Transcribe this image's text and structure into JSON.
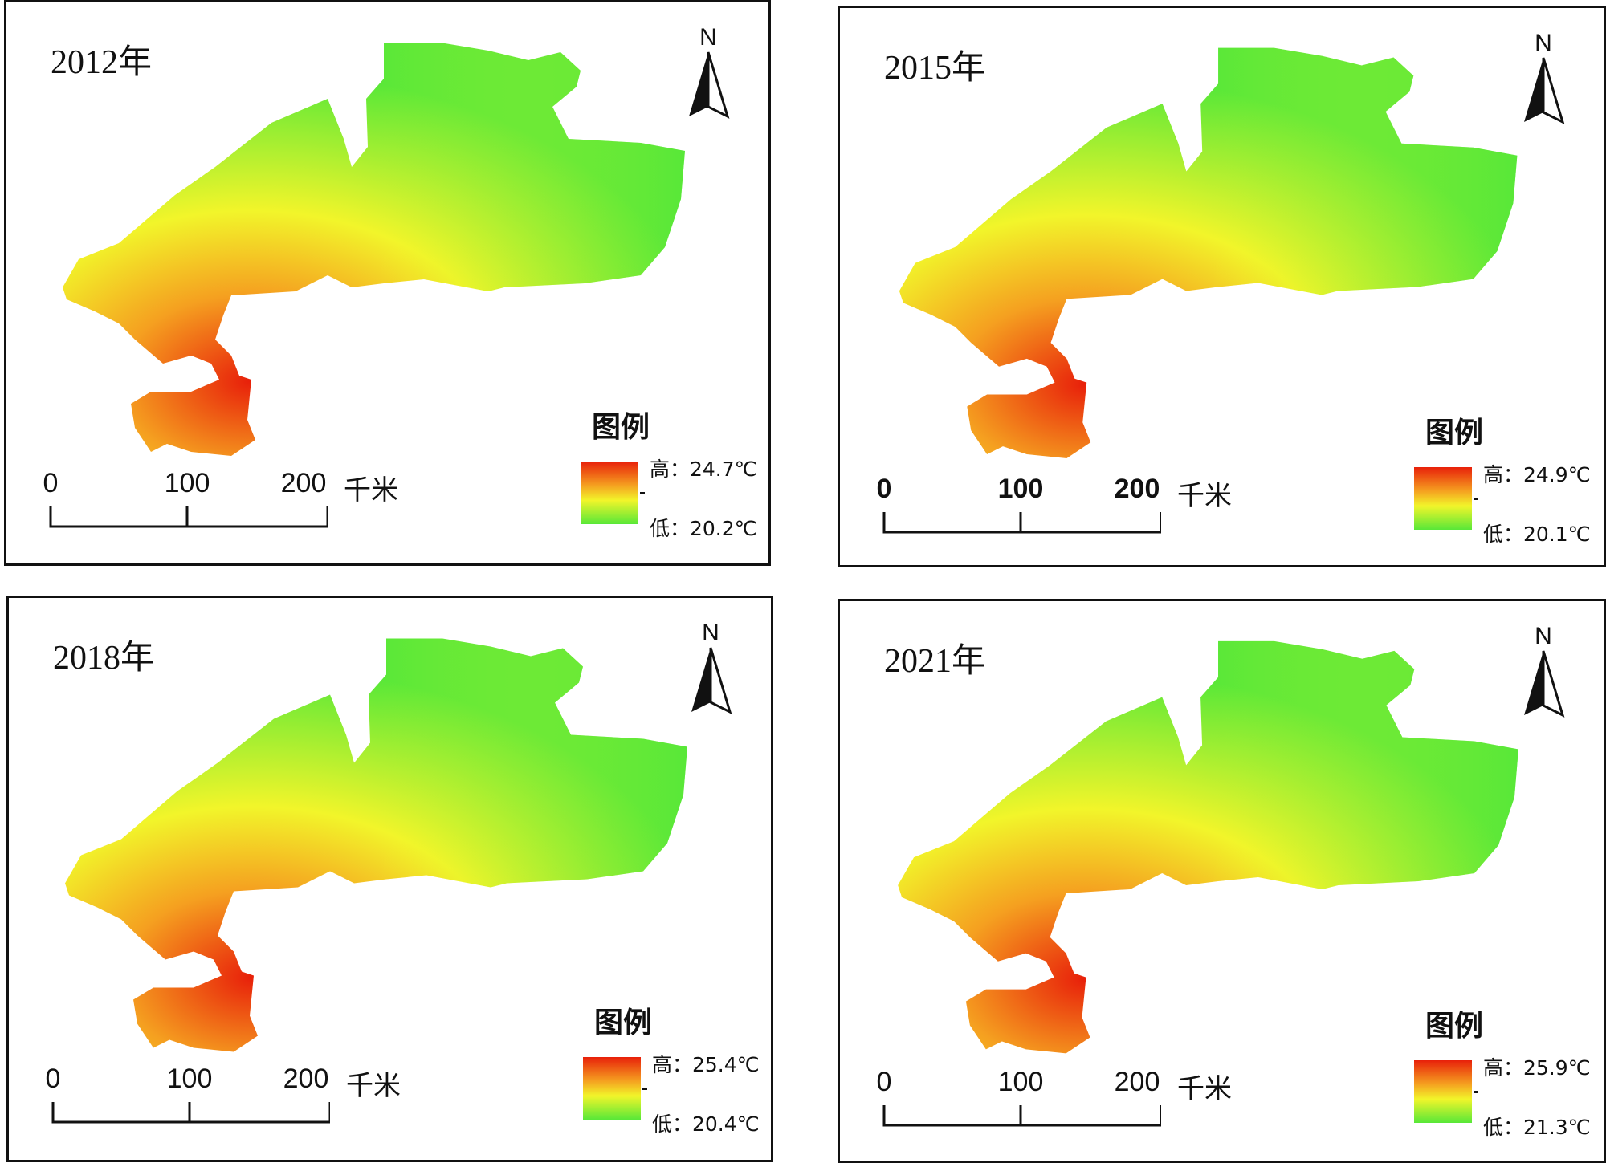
{
  "panels": [
    {
      "year_label": "2012年",
      "legend": {
        "title": "图例",
        "high": "高：24.7℃",
        "low": "低：20.2℃"
      }
    },
    {
      "year_label": "2015年",
      "legend": {
        "title": "图例",
        "high": "高：24.9℃",
        "low": "低：20.1℃"
      }
    },
    {
      "year_label": "2018年",
      "legend": {
        "title": "图例",
        "high": "高：25.4℃",
        "low": "低：20.4℃"
      }
    },
    {
      "year_label": "2021年",
      "legend": {
        "title": "图例",
        "high": "高：25.9℃",
        "low": "低：21.3℃"
      }
    }
  ],
  "north_arrow": {
    "label": "N"
  },
  "scale_bar": {
    "ticks": [
      "0",
      "100",
      "200"
    ],
    "unit": "千米"
  },
  "colors": {
    "high": "#e8200a",
    "mid_orange": "#f5a020",
    "mid_yellow": "#f2f52a",
    "low": "#58e838"
  }
}
